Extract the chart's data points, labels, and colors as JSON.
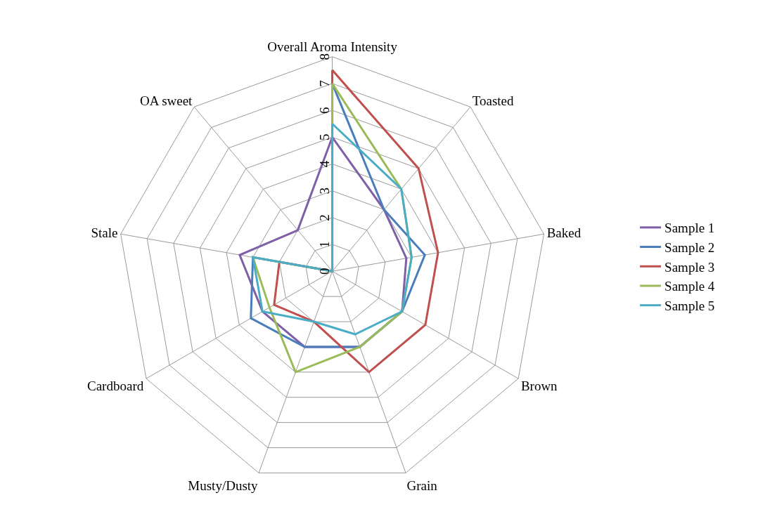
{
  "chart_data": {
    "type": "radar",
    "categories": [
      "Overall Aroma Intensity",
      "Toasted",
      "Baked",
      "Brown",
      "Grain",
      "Musty/Dusty",
      "Cardboard",
      "Stale",
      "OA sweet"
    ],
    "series": [
      {
        "name": "Sample 1",
        "color": "#7f5fa8",
        "values": [
          5,
          3,
          2.8,
          3,
          3,
          3,
          3,
          3.5,
          2
        ]
      },
      {
        "name": "Sample 2",
        "color": "#4a7ebb",
        "values": [
          7,
          3,
          3.5,
          3,
          3,
          3,
          3.5,
          3,
          0
        ]
      },
      {
        "name": "Sample 3",
        "color": "#c0504d",
        "values": [
          7.5,
          5,
          4,
          4,
          4,
          2,
          2.5,
          2,
          0
        ]
      },
      {
        "name": "Sample 4",
        "color": "#9bbb59",
        "values": [
          7,
          4,
          3,
          3,
          3,
          4,
          2.7,
          3,
          0
        ]
      },
      {
        "name": "Sample 5",
        "color": "#4bacc6",
        "values": [
          5.5,
          4,
          3,
          3,
          2.5,
          2,
          3,
          3,
          0
        ]
      }
    ],
    "ylim": [
      0,
      8
    ],
    "yticks": [
      0,
      1,
      2,
      3,
      4,
      5,
      6,
      7,
      8
    ],
    "grid": true,
    "legend": "right",
    "marker": "none",
    "line_style": "solid"
  }
}
